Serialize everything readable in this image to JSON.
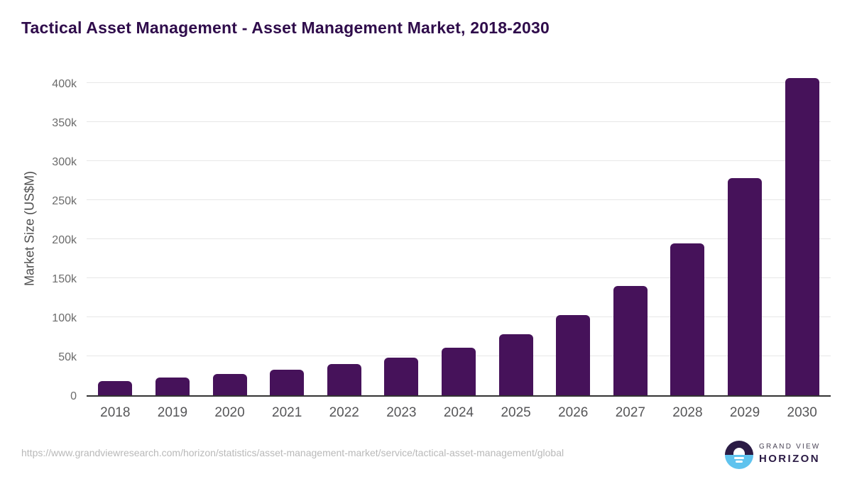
{
  "title": "Tactical Asset Management - Asset Management Market, 2018-2030",
  "chart_data": {
    "type": "bar",
    "title": "Tactical Asset Management - Asset Management Market, 2018-2030",
    "xlabel": "",
    "ylabel": "Market Size (US$M)",
    "categories": [
      "2018",
      "2019",
      "2020",
      "2021",
      "2022",
      "2023",
      "2024",
      "2025",
      "2026",
      "2027",
      "2028",
      "2029",
      "2030"
    ],
    "values": [
      18,
      23,
      27,
      33,
      40,
      48,
      61,
      78,
      103,
      140,
      195,
      278,
      407
    ],
    "value_unit": "thousand US$M (k)",
    "ytick_values": [
      0,
      50,
      100,
      150,
      200,
      250,
      300,
      350,
      400
    ],
    "ytick_labels": [
      "0",
      "50k",
      "100k",
      "150k",
      "200k",
      "250k",
      "300k",
      "350k",
      "400k"
    ],
    "ylim": [
      0,
      422
    ],
    "grid": true,
    "legend": "none",
    "bar_color": "#46125a"
  },
  "colors": {
    "title": "#2f0c4b",
    "bar": "#46125a",
    "gridline": "#e7e7e7",
    "axis_line": "#333333",
    "tick_text": "#6b6b6b",
    "logo_dark": "#2b1b45",
    "logo_blue": "#5fc3ee"
  },
  "footer": {
    "source_url": "https://www.grandviewresearch.com/horizon/statistics/asset-management-market/service/tactical-asset-management/global",
    "logo": {
      "line1": "GRAND VIEW",
      "line2": "HORIZON"
    }
  }
}
